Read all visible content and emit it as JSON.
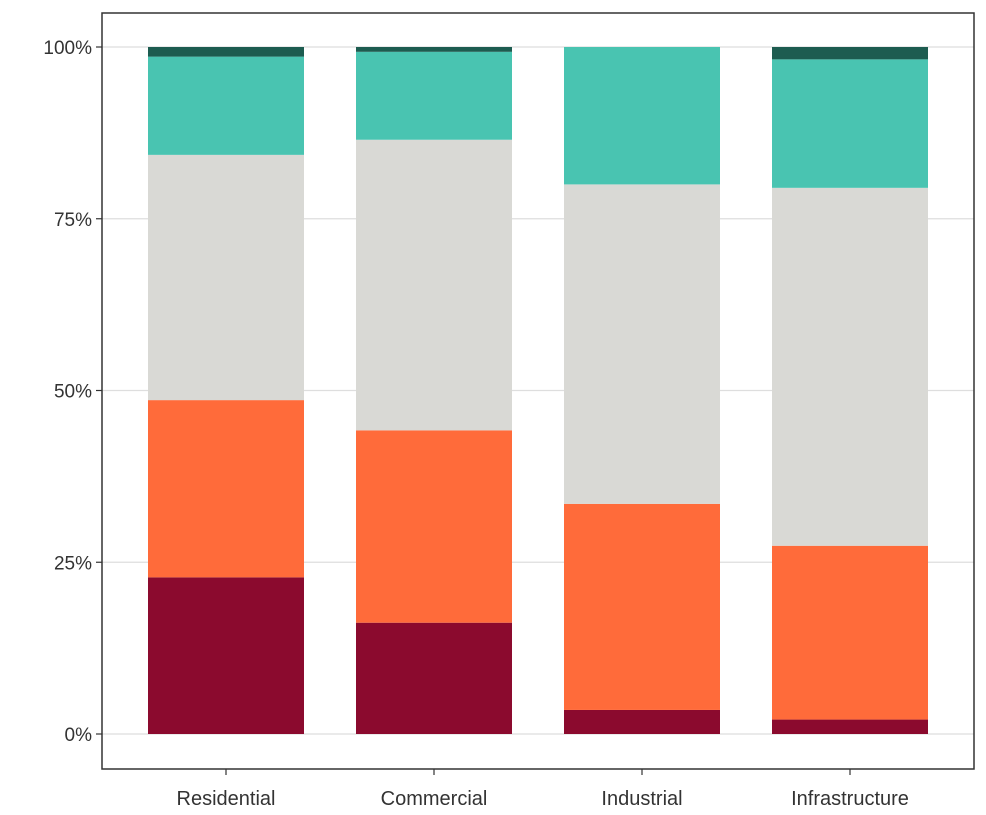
{
  "chart_data": {
    "type": "bar",
    "stacked": true,
    "normalized": true,
    "title": "",
    "xlabel": "",
    "ylabel": "",
    "ylim": [
      0,
      1
    ],
    "grid": "horizontal",
    "legend": "none",
    "categories": [
      "Residential",
      "Commercial",
      "Industrial",
      "Infrastructure"
    ],
    "y_ticks": [
      {
        "value": 0,
        "label": "0%"
      },
      {
        "value": 0.25,
        "label": "25%"
      },
      {
        "value": 0.5,
        "label": "50%"
      },
      {
        "value": 0.75,
        "label": "75%"
      },
      {
        "value": 1,
        "label": "100%"
      }
    ],
    "series": [
      {
        "color": "#8b0a2e",
        "values": [
          0.228,
          0.162,
          0.035,
          0.021
        ]
      },
      {
        "color": "#ff6b3a",
        "values": [
          0.258,
          0.28,
          0.3,
          0.253
        ]
      },
      {
        "color": "#d9d9d5",
        "values": [
          0.357,
          0.423,
          0.465,
          0.521
        ]
      },
      {
        "color": "#49c4b1",
        "values": [
          0.143,
          0.128,
          0.2,
          0.187
        ]
      },
      {
        "color": "#1d5c50",
        "values": [
          0.014,
          0.007,
          0.0,
          0.018
        ]
      }
    ]
  }
}
